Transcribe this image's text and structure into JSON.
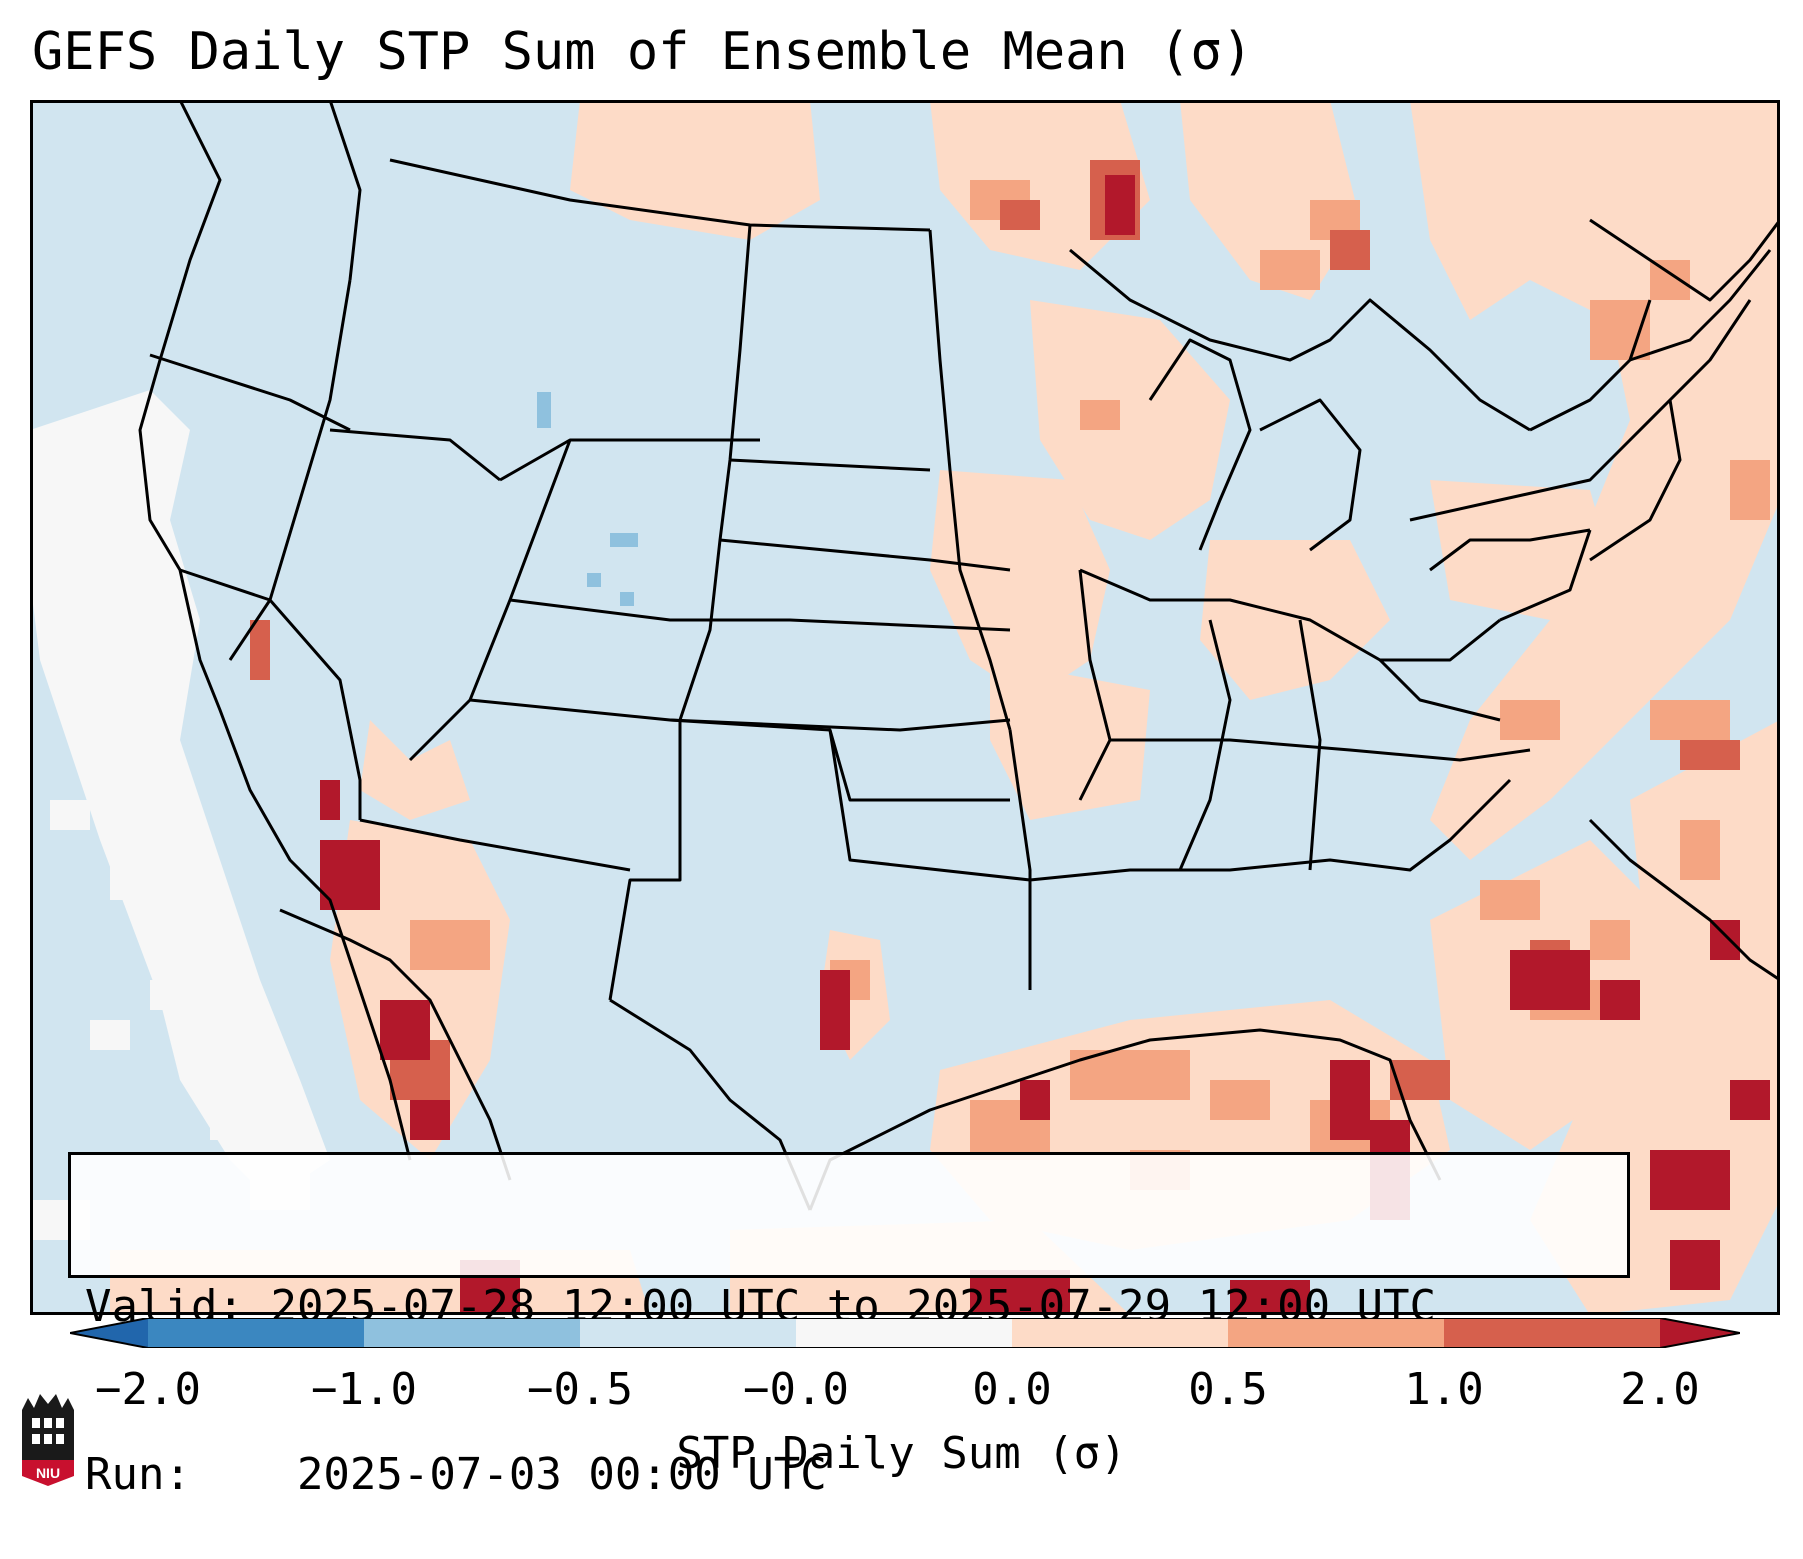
{
  "title": "GEFS Daily STP Sum of Ensemble Mean (σ)",
  "valid_label": "Valid:",
  "valid_value": "2025-07-28 12:00 UTC to 2025-07-29 12:00 UTC",
  "run_label": "Run:",
  "run_value": "2025-07-03 00:00 UTC",
  "colorbar": {
    "label": "STP Daily Sum (σ)",
    "ticks": [
      "−2.0",
      "−1.0",
      "−0.5",
      "−0.0",
      "0.0",
      "0.5",
      "1.0",
      "2.0"
    ],
    "colors": [
      "#3b87c0",
      "#8fc1de",
      "#d1e5f0",
      "#f7f7f7",
      "#fddbc7",
      "#f4a582",
      "#d6604d"
    ],
    "under_color": "#2166ac",
    "over_color": "#b2182b"
  },
  "map_colors": {
    "background": "#d1e5f0",
    "neutral": "#f7f7f7",
    "low_pos": "#fddbc7",
    "mid_pos": "#f4a582",
    "high_pos": "#d6604d",
    "extreme_pos": "#b2182b",
    "neg": "#8fc1de",
    "borders": "#000000"
  },
  "logo_text": "NIU"
}
